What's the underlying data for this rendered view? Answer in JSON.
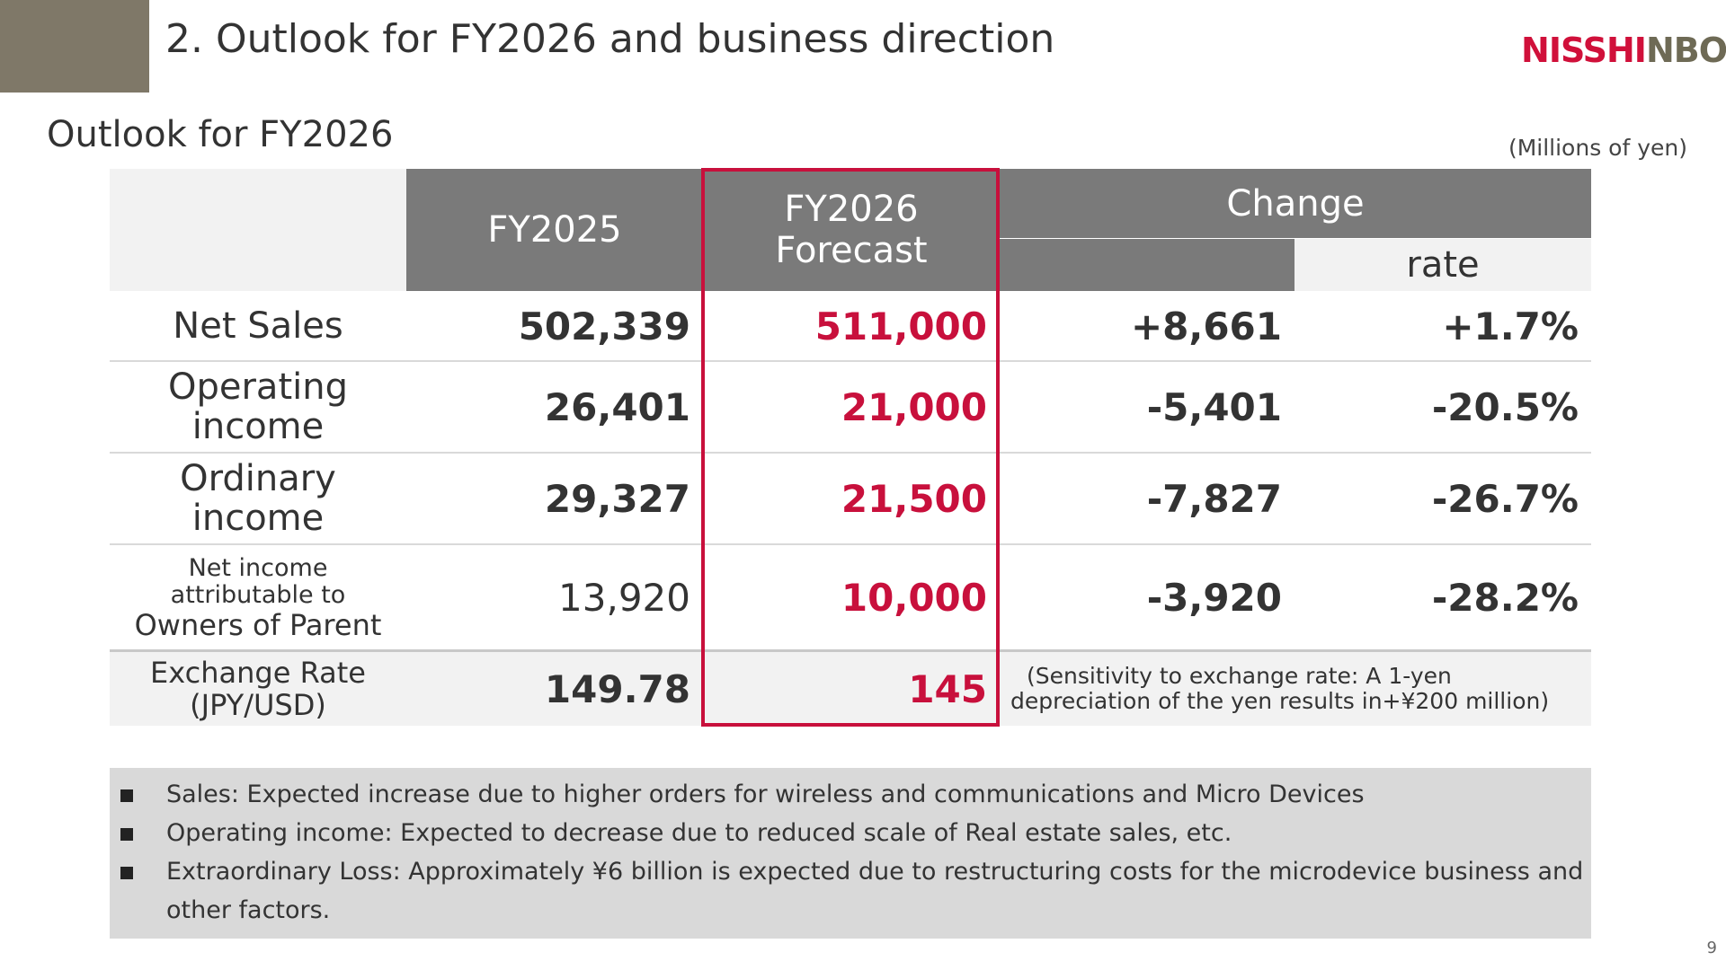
{
  "header": {
    "title": "2. Outlook for FY2026 and business direction",
    "logo_text_a": "N",
    "logo_text_b": "ISSH",
    "logo_text_c": "I",
    "logo_text_d": "NBO"
  },
  "section": {
    "title": "Outlook for FY2026",
    "unit": "(Millions of yen)"
  },
  "table": {
    "col_fy2025": "FY2025",
    "col_fy2026_line1": "FY2026",
    "col_fy2026_line2": "Forecast",
    "col_change": "Change",
    "col_rate": "rate",
    "rows": [
      {
        "label": "Net Sales",
        "fy2025": "502,339",
        "fy2026": "511,000",
        "change": "+8,661",
        "rate": "+1.7%"
      },
      {
        "label_line1": "Operating",
        "label_line2": "income",
        "fy2025": "26,401",
        "fy2026": "21,000",
        "change": "-5,401",
        "rate": "-20.5%"
      },
      {
        "label_line1": "Ordinary",
        "label_line2": "income",
        "fy2025": "29,327",
        "fy2026": "21,500",
        "change": "-7,827",
        "rate": "-26.7%"
      },
      {
        "label_line1": "Net income",
        "label_line2": "attributable to",
        "label_line3": "Owners of Parent",
        "fy2025": "13,920",
        "fy2026": "10,000",
        "change": "-3,920",
        "rate": "-28.2%"
      }
    ],
    "fx": {
      "label_line1": "Exchange Rate",
      "label_line2": "(JPY/USD)",
      "fy2025": "149.78",
      "fy2026": "145",
      "note_line1": "(Sensitivity to exchange rate: A 1-yen",
      "note_line2": "depreciation of the yen results in+¥200 million)"
    }
  },
  "notes": [
    " Sales: Expected increase due to higher orders for wireless and communications and Micro Devices",
    "Operating income: Expected to decrease due to reduced scale of Real estate sales, etc.",
    " Extraordinary Loss: Approximately ¥6 billion is expected due to restructuring costs for the microdevice business and",
    "other factors."
  ],
  "page_number": "9",
  "colors": {
    "accent_red": "#c8103c",
    "header_gray": "#7a7a7a",
    "corner_block": "#7f7868"
  }
}
